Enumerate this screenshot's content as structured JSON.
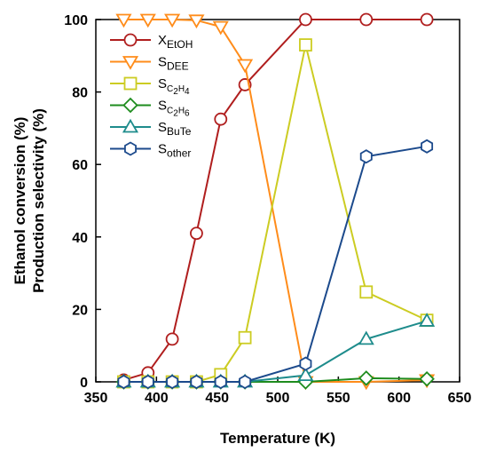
{
  "chart_data": {
    "type": "line",
    "xlabel": "Temperature (K)",
    "ylabel_lines": [
      "Ethanol conversion (%)",
      "Production selectivity (%)"
    ],
    "xlim": [
      350,
      650
    ],
    "ylim": [
      0,
      100
    ],
    "xticks": [
      350,
      400,
      450,
      500,
      550,
      600,
      650
    ],
    "yticks": [
      0,
      20,
      40,
      60,
      80,
      100
    ],
    "grid": false,
    "legend_position": "top-left",
    "series": [
      {
        "name": "XEtOH",
        "label_main": "X",
        "label_sub": "EtOH",
        "label_sub_parts": [],
        "color": "#b01e1e",
        "marker": "circle",
        "x": [
          373,
          393,
          413,
          433,
          453,
          473,
          523,
          573,
          623
        ],
        "y": [
          0.5,
          2.5,
          11.8,
          41.0,
          72.5,
          82.0,
          100,
          100,
          100
        ]
      },
      {
        "name": "SDEE",
        "label_main": "S",
        "label_sub": "DEE",
        "label_sub_parts": [],
        "color": "#ff8c1a",
        "marker": "triangle-down",
        "x": [
          373,
          393,
          413,
          433,
          453,
          473,
          523,
          573,
          623
        ],
        "y": [
          100,
          100,
          100,
          99.8,
          98.0,
          87.5,
          0,
          0,
          0.5
        ]
      },
      {
        "name": "SC2H4",
        "label_main": "S",
        "label_sub": "",
        "label_sub_parts": [
          "C",
          "2",
          "H",
          "4"
        ],
        "color": "#cccc22",
        "marker": "square",
        "x": [
          373,
          393,
          413,
          433,
          453,
          473,
          523,
          573,
          623
        ],
        "y": [
          0,
          0,
          0,
          0,
          2.0,
          12.2,
          93.0,
          24.8,
          17.0
        ]
      },
      {
        "name": "SC2H6",
        "label_main": "S",
        "label_sub": "",
        "label_sub_parts": [
          "C",
          "2",
          "H",
          "6"
        ],
        "color": "#1e8c1e",
        "marker": "diamond",
        "x": [
          373,
          393,
          413,
          433,
          453,
          473,
          523,
          573,
          623
        ],
        "y": [
          0,
          0,
          0,
          0,
          0,
          0,
          0,
          1.0,
          0.8
        ]
      },
      {
        "name": "SBuTe",
        "label_main": "S",
        "label_sub": "BuTe",
        "label_sub_parts": [],
        "color": "#1e8c8c",
        "marker": "triangle-up",
        "x": [
          373,
          393,
          413,
          433,
          453,
          473,
          523,
          573,
          623
        ],
        "y": [
          0,
          0,
          0,
          0,
          0,
          0,
          1.8,
          11.8,
          16.8
        ]
      },
      {
        "name": "Sother",
        "label_main": "S",
        "label_sub": "other",
        "label_sub_parts": [],
        "color": "#1c4a8c",
        "marker": "hexagon",
        "x": [
          373,
          393,
          413,
          433,
          453,
          473,
          523,
          573,
          623
        ],
        "y": [
          0,
          0,
          0,
          0,
          0,
          0,
          5.0,
          62.2,
          65.0
        ]
      }
    ]
  }
}
